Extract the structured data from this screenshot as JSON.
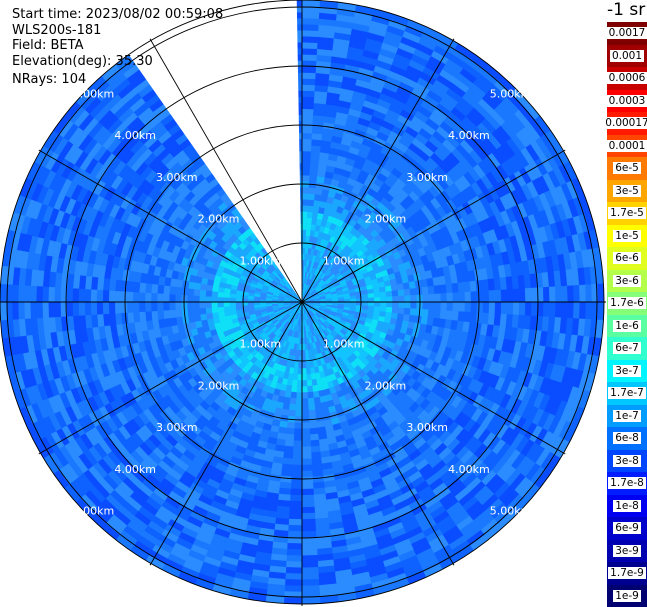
{
  "info": {
    "start_time": "Start time: 2023/08/02 00:59:08",
    "instrument": "WLS200s-181",
    "field": "Field: BETA",
    "elevation": "Elevation(deg): 35.30",
    "nrays": "NRays: 104"
  },
  "chart_data": {
    "type": "heatmap",
    "projection": "polar",
    "field": "BETA",
    "range_rings_km": [
      1,
      2,
      3,
      4,
      5
    ],
    "range_labels": [
      "1.00km",
      "2.00km",
      "3.00km",
      "4.00km",
      "5.00km"
    ],
    "spokes_deg": [
      0,
      30,
      60,
      90,
      120,
      150,
      180,
      210,
      240,
      270,
      300,
      330
    ],
    "missing_sector_deg": [
      -35,
      -1
    ],
    "colorbar": {
      "unit": "-1 sr",
      "labels": [
        "0.0017",
        "0.001",
        "0.0006",
        "0.0003",
        "0.00017",
        "0.0001",
        "6e-5",
        "3e-5",
        "1.7e-5",
        "1e-5",
        "6e-6",
        "3e-6",
        "1.7e-6",
        "1e-6",
        "6e-7",
        "3e-7",
        "1.7e-7",
        "1e-7",
        "6e-8",
        "3e-8",
        "1.7e-8",
        "1e-8",
        "6e-9",
        "3e-9",
        "1.7e-9",
        "1e-9"
      ],
      "colors": [
        "#7f0000",
        "#a10000",
        "#c80000",
        "#ff0000",
        "#ff1a00",
        "#ff4500",
        "#ff7a00",
        "#ffa500",
        "#ffd200",
        "#ffff00",
        "#e0ff1f",
        "#b4ff4a",
        "#86ff78",
        "#5affa2",
        "#31ffcf",
        "#00f5ff",
        "#00c8ff",
        "#009cff",
        "#0070ff",
        "#0046ff",
        "#001cff",
        "#0000f0",
        "#0000cc",
        "#0000b0",
        "#000090",
        "#000070"
      ]
    }
  }
}
